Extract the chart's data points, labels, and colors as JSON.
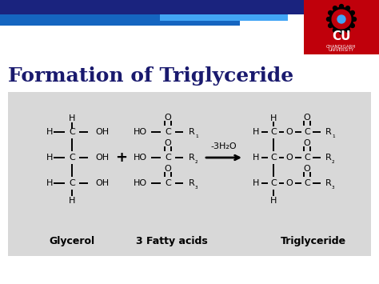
{
  "title": "Formation of Triglyceride",
  "title_color": "#1a1a6e",
  "title_fontsize": 18,
  "slide_bg": "#ffffff",
  "cu_box_color": "#c0000b",
  "glycerol_label": "Glycerol",
  "fatty_acids_label": "3 Fatty acids",
  "triglyceride_label": "Triglyceride",
  "arrow_label": "-3H₂O",
  "figsize": [
    4.74,
    3.55
  ],
  "dpi": 100,
  "header_dark": "#1a237e",
  "header_mid": "#1565c0",
  "header_light": "#42a5f5",
  "chem_box_color": "#d8d8d8"
}
